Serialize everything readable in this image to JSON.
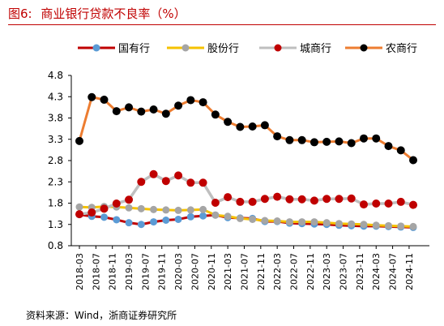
{
  "figure": {
    "number": "图6:",
    "title": "商业银行贷款不良率（%）",
    "source": "资料来源：Wind，浙商证券研究所"
  },
  "colors": {
    "title": "#c00000",
    "series": [
      "#c00000",
      "#f5c200",
      "#bfbfbf",
      "#ed7d31"
    ],
    "markers": [
      "#5b9bd5",
      "#a5a5a5",
      "#c00000",
      "#000000"
    ]
  },
  "chart_data": {
    "type": "line",
    "title": "",
    "xlabel": "",
    "ylabel": "",
    "ylim": [
      0.8,
      4.8
    ],
    "yticks": [
      "0.8",
      "1.3",
      "1.8",
      "2.3",
      "2.8",
      "3.3",
      "3.8",
      "4.3",
      "4.8"
    ],
    "xticks": [
      "2018-03",
      "2018-07",
      "2018-11",
      "2019-03",
      "2019-07",
      "2019-11",
      "2020-03",
      "2020-07",
      "2020-11",
      "2021-03",
      "2021-07",
      "2021-11",
      "2022-03",
      "2022-07",
      "2022-11",
      "2023-03",
      "2023-07",
      "2023-11",
      "2024-03",
      "2024-07",
      "2024-11"
    ],
    "x": [
      "2018-03",
      "2018-06",
      "2018-09",
      "2018-12",
      "2019-03",
      "2019-06",
      "2019-09",
      "2019-12",
      "2020-03",
      "2020-06",
      "2020-09",
      "2020-12",
      "2021-03",
      "2021-06",
      "2021-09",
      "2021-12",
      "2022-03",
      "2022-06",
      "2022-09",
      "2022-12",
      "2023-03",
      "2023-06",
      "2023-09",
      "2023-12",
      "2024-03",
      "2024-06",
      "2024-09",
      "2024-12"
    ],
    "legend_position": "top",
    "grid": false,
    "series": [
      {
        "name": "国有行",
        "values": [
          1.53,
          1.49,
          1.47,
          1.41,
          1.34,
          1.3,
          1.36,
          1.4,
          1.42,
          1.48,
          1.5,
          1.52,
          1.46,
          1.45,
          1.44,
          1.37,
          1.37,
          1.33,
          1.32,
          1.31,
          1.3,
          1.28,
          1.27,
          1.26,
          1.26,
          1.25,
          1.24,
          1.23
        ]
      },
      {
        "name": "股份行",
        "values": [
          1.71,
          1.7,
          1.72,
          1.71,
          1.69,
          1.67,
          1.65,
          1.64,
          1.63,
          1.64,
          1.65,
          1.52,
          1.49,
          1.44,
          1.42,
          1.39,
          1.38,
          1.36,
          1.36,
          1.36,
          1.34,
          1.32,
          1.31,
          1.3,
          1.28,
          1.27,
          1.26,
          1.25
        ]
      },
      {
        "name": "城商行",
        "values": [
          1.54,
          1.58,
          1.67,
          1.79,
          1.88,
          2.3,
          2.48,
          2.32,
          2.45,
          2.28,
          2.28,
          1.81,
          1.94,
          1.83,
          1.83,
          1.9,
          1.95,
          1.89,
          1.89,
          1.86,
          1.9,
          1.9,
          1.91,
          1.77,
          1.79,
          1.79,
          1.83,
          1.76
        ]
      },
      {
        "name": "农商行",
        "values": [
          3.26,
          4.29,
          4.23,
          3.96,
          4.05,
          3.95,
          4.0,
          3.9,
          4.09,
          4.22,
          4.17,
          3.88,
          3.71,
          3.59,
          3.6,
          3.63,
          3.37,
          3.28,
          3.28,
          3.23,
          3.24,
          3.25,
          3.21,
          3.32,
          3.32,
          3.14,
          3.04,
          2.81
        ]
      }
    ]
  }
}
